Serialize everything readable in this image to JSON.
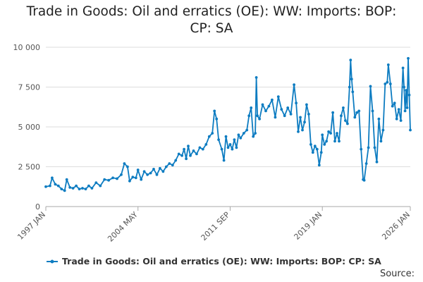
{
  "title_lines": [
    "Trade in Goods: Oil and erratics (OE): WW: Imports: BOP:",
    "CP: SA"
  ],
  "source_label": "Source:",
  "colors": {
    "series": "#0d7cc1",
    "grid": "#dddddd",
    "axis_text": "#555555"
  },
  "chart_data": {
    "type": "line",
    "title": "Trade in Goods: Oil and erratics (OE): WW: Imports: BOP: CP: SA",
    "xlabel": "",
    "ylabel": "",
    "x_range": [
      "1997-01",
      "2026-01"
    ],
    "ylim": [
      0,
      10000
    ],
    "y_ticks": [
      0,
      2500,
      5000,
      7500,
      10000
    ],
    "y_tick_labels": [
      "0",
      "2 500",
      "5 000",
      "7 500",
      "10 000"
    ],
    "x_ticks": [
      "1997-01",
      "2004-05",
      "2011-09",
      "2019-01",
      "2026-01"
    ],
    "x_tick_labels": [
      "1997 JAN",
      "2004 MAY",
      "2011 SEP",
      "2019 JAN",
      "2026 JAN"
    ],
    "grid": true,
    "legend_position": "bottom",
    "series": [
      {
        "name": "Trade in Goods: Oil and erratics (OE): WW: Imports: BOP: CP: SA",
        "points": [
          [
            "1997-01",
            1250
          ],
          [
            "1997-05",
            1300
          ],
          [
            "1997-07",
            1800
          ],
          [
            "1997-10",
            1400
          ],
          [
            "1998-01",
            1300
          ],
          [
            "1998-04",
            1100
          ],
          [
            "1998-07",
            1000
          ],
          [
            "1998-09",
            1700
          ],
          [
            "1998-12",
            1200
          ],
          [
            "1999-03",
            1150
          ],
          [
            "1999-06",
            1300
          ],
          [
            "1999-09",
            1100
          ],
          [
            "1999-12",
            1150
          ],
          [
            "2000-03",
            1100
          ],
          [
            "2000-06",
            1300
          ],
          [
            "2000-09",
            1150
          ],
          [
            "2001-01",
            1500
          ],
          [
            "2001-05",
            1300
          ],
          [
            "2001-09",
            1700
          ],
          [
            "2002-01",
            1650
          ],
          [
            "2002-05",
            1800
          ],
          [
            "2002-09",
            1750
          ],
          [
            "2003-01",
            2000
          ],
          [
            "2003-04",
            2700
          ],
          [
            "2003-07",
            2500
          ],
          [
            "2003-09",
            1600
          ],
          [
            "2003-12",
            1850
          ],
          [
            "2004-03",
            1800
          ],
          [
            "2004-05",
            2300
          ],
          [
            "2004-08",
            1700
          ],
          [
            "2004-11",
            2200
          ],
          [
            "2005-02",
            2000
          ],
          [
            "2005-05",
            2100
          ],
          [
            "2005-08",
            2350
          ],
          [
            "2005-11",
            2000
          ],
          [
            "2006-02",
            2400
          ],
          [
            "2006-05",
            2200
          ],
          [
            "2006-08",
            2500
          ],
          [
            "2006-11",
            2700
          ],
          [
            "2007-02",
            2600
          ],
          [
            "2007-05",
            2900
          ],
          [
            "2007-08",
            3300
          ],
          [
            "2007-11",
            3200
          ],
          [
            "2008-01",
            3600
          ],
          [
            "2008-03",
            3000
          ],
          [
            "2008-05",
            3800
          ],
          [
            "2008-07",
            3200
          ],
          [
            "2008-10",
            3500
          ],
          [
            "2009-01",
            3300
          ],
          [
            "2009-04",
            3700
          ],
          [
            "2009-07",
            3600
          ],
          [
            "2009-10",
            3900
          ],
          [
            "2010-01",
            4400
          ],
          [
            "2010-04",
            4600
          ],
          [
            "2010-06",
            6000
          ],
          [
            "2010-08",
            5500
          ],
          [
            "2010-10",
            4200
          ],
          [
            "2011-01",
            3600
          ],
          [
            "2011-03",
            2900
          ],
          [
            "2011-05",
            4400
          ],
          [
            "2011-07",
            3700
          ],
          [
            "2011-09",
            3900
          ],
          [
            "2011-11",
            3600
          ],
          [
            "2012-01",
            4200
          ],
          [
            "2012-03",
            3700
          ],
          [
            "2012-05",
            4500
          ],
          [
            "2012-07",
            4300
          ],
          [
            "2012-10",
            4600
          ],
          [
            "2013-01",
            4800
          ],
          [
            "2013-03",
            5700
          ],
          [
            "2013-05",
            6200
          ],
          [
            "2013-07",
            4400
          ],
          [
            "2013-09",
            4600
          ],
          [
            "2013-10",
            8100
          ],
          [
            "2013-11",
            5700
          ],
          [
            "2014-01",
            5500
          ],
          [
            "2014-04",
            6400
          ],
          [
            "2014-07",
            6000
          ],
          [
            "2014-10",
            6300
          ],
          [
            "2015-01",
            6700
          ],
          [
            "2015-04",
            5600
          ],
          [
            "2015-07",
            6900
          ],
          [
            "2015-10",
            6100
          ],
          [
            "2016-01",
            5700
          ],
          [
            "2016-04",
            6200
          ],
          [
            "2016-07",
            5800
          ],
          [
            "2016-10",
            7650
          ],
          [
            "2016-12",
            6500
          ],
          [
            "2017-02",
            4700
          ],
          [
            "2017-04",
            5600
          ],
          [
            "2017-06",
            4800
          ],
          [
            "2017-08",
            5300
          ],
          [
            "2017-10",
            6400
          ],
          [
            "2017-12",
            5800
          ],
          [
            "2018-02",
            3900
          ],
          [
            "2018-04",
            3400
          ],
          [
            "2018-06",
            3800
          ],
          [
            "2018-08",
            3600
          ],
          [
            "2018-10",
            2600
          ],
          [
            "2018-12",
            3400
          ],
          [
            "2019-01",
            4500
          ],
          [
            "2019-03",
            3900
          ],
          [
            "2019-05",
            4100
          ],
          [
            "2019-07",
            4700
          ],
          [
            "2019-09",
            4600
          ],
          [
            "2019-11",
            5900
          ],
          [
            "2020-01",
            4100
          ],
          [
            "2020-03",
            4600
          ],
          [
            "2020-05",
            4100
          ],
          [
            "2020-07",
            5700
          ],
          [
            "2020-09",
            6200
          ],
          [
            "2020-11",
            5400
          ],
          [
            "2021-01",
            5200
          ],
          [
            "2021-03",
            7500
          ],
          [
            "2021-04",
            9200
          ],
          [
            "2021-05",
            8000
          ],
          [
            "2021-06",
            7200
          ],
          [
            "2021-08",
            5600
          ],
          [
            "2021-10",
            5900
          ],
          [
            "2021-12",
            6000
          ],
          [
            "2022-02",
            3600
          ],
          [
            "2022-04",
            1700
          ],
          [
            "2022-05",
            1650
          ],
          [
            "2022-07",
            2700
          ],
          [
            "2022-09",
            3700
          ],
          [
            "2022-11",
            7550
          ],
          [
            "2023-01",
            6000
          ],
          [
            "2023-03",
            3700
          ],
          [
            "2023-05",
            2800
          ],
          [
            "2023-07",
            5500
          ],
          [
            "2023-09",
            4100
          ],
          [
            "2023-11",
            4800
          ],
          [
            "2024-01",
            7700
          ],
          [
            "2024-03",
            7800
          ],
          [
            "2024-04",
            8900
          ],
          [
            "2024-06",
            7700
          ],
          [
            "2024-08",
            6300
          ],
          [
            "2024-10",
            6500
          ],
          [
            "2024-12",
            5500
          ],
          [
            "2025-02",
            6100
          ],
          [
            "2025-04",
            5400
          ],
          [
            "2025-06",
            8700
          ],
          [
            "2025-07",
            7500
          ],
          [
            "2025-08",
            6000
          ],
          [
            "2025-09",
            7300
          ],
          [
            "2025-10",
            6200
          ],
          [
            "2025-11",
            9300
          ],
          [
            "2025-12",
            7000
          ],
          [
            "2026-01",
            4800
          ]
        ]
      }
    ]
  }
}
